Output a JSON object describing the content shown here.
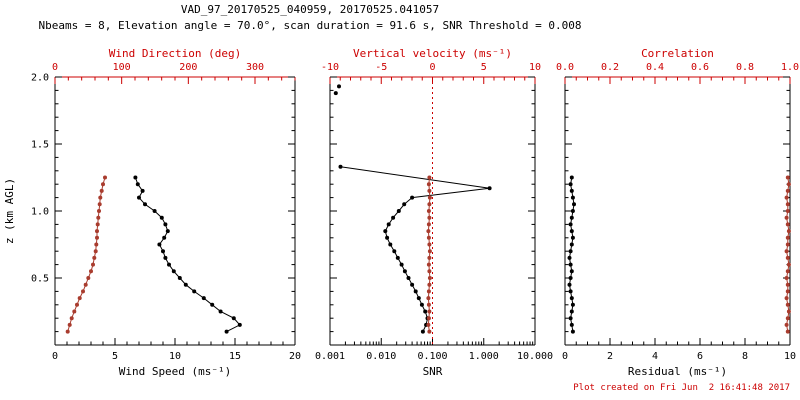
{
  "title": "VAD_97_20170525_040959, 20170525.041057",
  "subtitle": "Nbeams = 8, Elevation angle = 70.0°, scan duration = 91.6 s, SNR Threshold = 0.008",
  "footer": "Plot created on Fri Jun  2 16:41:48 2017",
  "colors": {
    "axis_black": "#000000",
    "axis_red": "#cc0000",
    "series_black": "#000000",
    "series_red": "#a93c2e",
    "background": "#ffffff"
  },
  "chart_data": {
    "type": "line",
    "description": "VAD lidar wind profile, three panels sharing a height axis",
    "y_axis": {
      "label": "z (km AGL)",
      "lim": [
        0,
        2
      ],
      "ticks": [
        0.5,
        1.0,
        1.5,
        2.0
      ],
      "tick_labels": [
        "0.5",
        "1.0",
        "1.5",
        "2.0"
      ],
      "minor_step": 0.1
    },
    "panels": [
      {
        "name": "wind-panel",
        "show_ytick_labels": true,
        "bottom_axis": {
          "label": "Wind Speed (ms⁻¹)",
          "scale": "linear",
          "lim": [
            0,
            20
          ],
          "ticks": [
            0,
            5,
            10,
            15,
            20
          ],
          "tick_labels": [
            "0",
            "5",
            "10",
            "15",
            "20"
          ],
          "minor_step": 1
        },
        "top_axis": {
          "label": "Wind Direction (deg)",
          "scale": "linear",
          "lim": [
            0,
            360
          ],
          "ticks": [
            0,
            100,
            200,
            300
          ],
          "tick_labels": [
            "0",
            "100",
            "200",
            "300"
          ],
          "minor_step": 20
        },
        "series": [
          {
            "name": "wind-speed",
            "axis": "bottom",
            "color": "series_black",
            "line": true,
            "z": [
              0.1,
              0.15,
              0.2,
              0.25,
              0.3,
              0.35,
              0.4,
              0.45,
              0.5,
              0.55,
              0.6,
              0.65,
              0.7,
              0.75,
              0.8,
              0.85,
              0.9,
              0.95,
              1.0,
              1.05,
              1.1,
              1.15,
              1.2,
              1.25
            ],
            "values": [
              14.3,
              15.4,
              14.9,
              13.8,
              13.1,
              12.4,
              11.6,
              10.9,
              10.4,
              9.9,
              9.5,
              9.2,
              9.0,
              8.7,
              9.1,
              9.4,
              9.2,
              8.9,
              8.3,
              7.5,
              7.0,
              7.3,
              6.9,
              6.7
            ]
          },
          {
            "name": "wind-direction",
            "axis": "top",
            "color": "series_red",
            "line": true,
            "z": [
              0.1,
              0.15,
              0.2,
              0.25,
              0.3,
              0.35,
              0.4,
              0.45,
              0.5,
              0.55,
              0.6,
              0.65,
              0.7,
              0.75,
              0.8,
              0.85,
              0.9,
              0.95,
              1.0,
              1.05,
              1.1,
              1.15,
              1.2,
              1.25
            ],
            "values": [
              19,
              22,
              25,
              29,
              33,
              37,
              42,
              46,
              50,
              54,
              57,
              59,
              61,
              62,
              63,
              63,
              64,
              65,
              66,
              67,
              68,
              70,
              72,
              75
            ]
          }
        ]
      },
      {
        "name": "snr-panel",
        "show_ytick_labels": false,
        "bottom_axis": {
          "label": "SNR",
          "scale": "log",
          "lim": [
            0.001,
            10
          ],
          "ticks": [
            0.001,
            0.01,
            0.1,
            1,
            10
          ],
          "tick_labels": [
            "0.001",
            "0.010",
            "0.100",
            "1.000",
            "10.000"
          ]
        },
        "top_axis": {
          "label": "Vertical velocity (ms⁻¹)",
          "scale": "linear",
          "lim": [
            -10,
            10
          ],
          "ticks": [
            -10,
            -5,
            0,
            5,
            10
          ],
          "tick_labels": [
            "-10",
            "-5",
            "0",
            "5",
            "10"
          ],
          "minor_step": 1
        },
        "refline": {
          "axis": "top",
          "value": 0,
          "color": "axis_red",
          "dash": "2,3"
        },
        "series": [
          {
            "name": "snr",
            "axis": "bottom",
            "color": "series_black",
            "line": true,
            "z": [
              0.1,
              0.15,
              0.2,
              0.25,
              0.3,
              0.35,
              0.4,
              0.45,
              0.5,
              0.55,
              0.6,
              0.65,
              0.7,
              0.75,
              0.8,
              0.85,
              0.9,
              0.95,
              1.0,
              1.05,
              1.1,
              1.17,
              1.33
            ],
            "values": [
              0.065,
              0.075,
              0.08,
              0.072,
              0.062,
              0.054,
              0.047,
              0.04,
              0.034,
              0.029,
              0.025,
              0.021,
              0.018,
              0.015,
              0.013,
              0.012,
              0.014,
              0.017,
              0.022,
              0.028,
              0.04,
              1.3,
              0.0016
            ]
          },
          {
            "name": "snr-upper-gates",
            "axis": "bottom",
            "color": "series_black",
            "line": false,
            "z": [
              1.88,
              1.93
            ],
            "values": [
              0.0013,
              0.0015
            ]
          },
          {
            "name": "vertical-velocity",
            "axis": "top",
            "color": "series_red",
            "line": true,
            "z": [
              0.1,
              0.15,
              0.2,
              0.25,
              0.3,
              0.35,
              0.4,
              0.45,
              0.5,
              0.55,
              0.6,
              0.65,
              0.7,
              0.75,
              0.8,
              0.85,
              0.9,
              0.95,
              1.0,
              1.05,
              1.1,
              1.15,
              1.2,
              1.25
            ],
            "values": [
              -0.3,
              -0.4,
              -0.35,
              -0.3,
              -0.35,
              -0.4,
              -0.35,
              -0.3,
              -0.25,
              -0.3,
              -0.35,
              -0.3,
              -0.25,
              -0.3,
              -0.35,
              -0.4,
              -0.35,
              -0.3,
              -0.35,
              -0.3,
              -0.25,
              -0.3,
              -0.35,
              -0.3
            ]
          }
        ]
      },
      {
        "name": "residual-panel",
        "show_ytick_labels": false,
        "bottom_axis": {
          "label": "Residual (ms⁻¹)",
          "scale": "linear",
          "lim": [
            0,
            10
          ],
          "ticks": [
            0,
            2,
            4,
            6,
            8,
            10
          ],
          "tick_labels": [
            "0",
            "2",
            "4",
            "6",
            "8",
            "10"
          ],
          "minor_step": 0.5
        },
        "top_axis": {
          "label": "Correlation",
          "scale": "linear",
          "lim": [
            0,
            1
          ],
          "ticks": [
            0,
            0.2,
            0.4,
            0.6,
            0.8,
            1
          ],
          "tick_labels": [
            "0.0",
            "0.2",
            "0.4",
            "0.6",
            "0.8",
            "1.0"
          ],
          "minor_step": 0.05
        },
        "series": [
          {
            "name": "residual",
            "axis": "bottom",
            "color": "series_black",
            "line": true,
            "z": [
              0.1,
              0.15,
              0.2,
              0.25,
              0.3,
              0.35,
              0.4,
              0.45,
              0.5,
              0.55,
              0.6,
              0.65,
              0.7,
              0.75,
              0.8,
              0.85,
              0.9,
              0.95,
              1.0,
              1.05,
              1.1,
              1.15,
              1.2,
              1.25
            ],
            "values": [
              0.35,
              0.3,
              0.25,
              0.3,
              0.35,
              0.3,
              0.25,
              0.2,
              0.25,
              0.3,
              0.25,
              0.2,
              0.25,
              0.3,
              0.35,
              0.3,
              0.25,
              0.3,
              0.35,
              0.4,
              0.35,
              0.3,
              0.25,
              0.3
            ]
          },
          {
            "name": "correlation",
            "axis": "top",
            "color": "series_red",
            "line": true,
            "z": [
              0.1,
              0.15,
              0.2,
              0.25,
              0.3,
              0.35,
              0.4,
              0.45,
              0.5,
              0.55,
              0.6,
              0.65,
              0.7,
              0.75,
              0.8,
              0.85,
              0.9,
              0.95,
              1.0,
              1.05,
              1.1,
              1.15,
              1.2,
              1.25
            ],
            "values": [
              0.99,
              0.985,
              0.99,
              0.995,
              0.99,
              0.985,
              0.99,
              0.99,
              0.985,
              0.99,
              0.995,
              0.99,
              0.985,
              0.99,
              0.99,
              0.995,
              0.99,
              0.985,
              0.99,
              0.99,
              0.985,
              0.99,
              0.995,
              0.99
            ]
          }
        ]
      }
    ]
  }
}
